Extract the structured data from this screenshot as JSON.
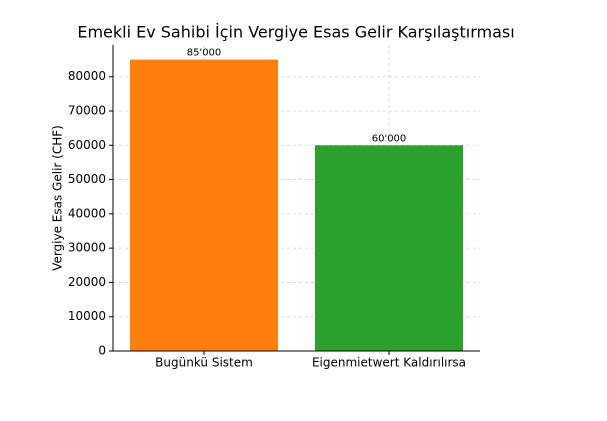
{
  "chart_data": {
    "type": "bar",
    "title": "Emekli Ev Sahibi İçin Vergiye Esas Gelir Karşılaştırması",
    "y_label": "Vergiye Esas Gelir (CHF)",
    "categories": [
      "Bugünkü Sistem",
      "Eigenmietwert Kaldırılırsa"
    ],
    "values": [
      85000,
      60000
    ],
    "value_labels": [
      "85'000",
      "60'000"
    ],
    "colors": [
      "#ff7f0e",
      "#2ca02c"
    ],
    "ylim": [
      0,
      89250
    ],
    "yticks": [
      0,
      10000,
      20000,
      30000,
      40000,
      50000,
      60000,
      70000,
      80000
    ],
    "grid": true
  }
}
